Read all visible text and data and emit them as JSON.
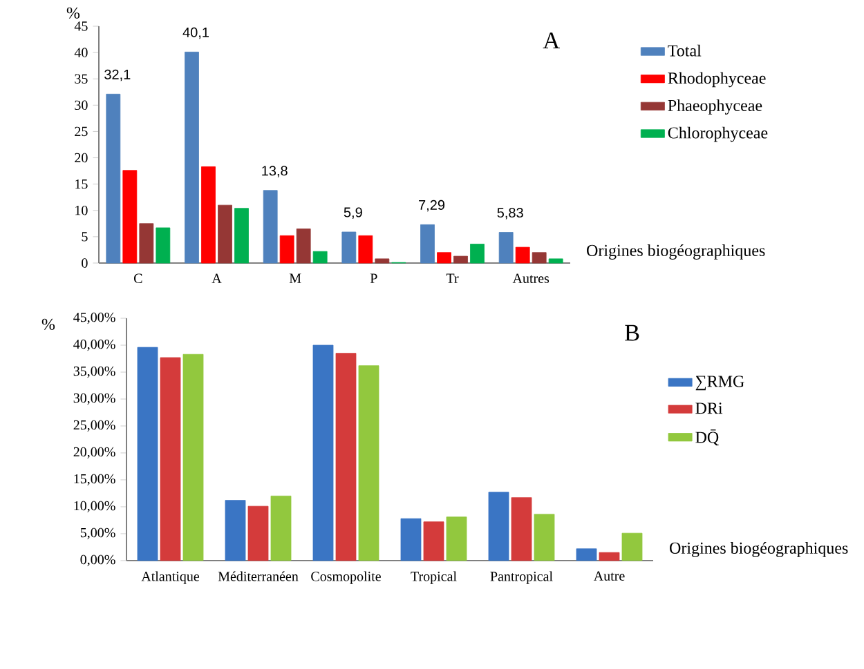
{
  "chart_data": [
    {
      "type": "bar",
      "ylabel": "%",
      "xlabel": "Origines biogéographiques",
      "categories": [
        "C",
        "A",
        "M",
        "P",
        "Tr",
        "Autres"
      ],
      "series": [
        {
          "name": "Total",
          "color": "#4f81bd",
          "values": [
            32.1,
            40.1,
            13.8,
            5.9,
            7.29,
            5.83
          ],
          "value_labels": [
            "32,1",
            "40,1",
            "13,8",
            "5,9",
            "7,29",
            "5,83"
          ]
        },
        {
          "name": "Rhodophyceae",
          "color": "#ff0000",
          "values": [
            17.6,
            18.3,
            5.2,
            5.2,
            2.0,
            3.0
          ]
        },
        {
          "name": "Phaeophyceae",
          "color": "#953735",
          "values": [
            7.5,
            11.0,
            6.5,
            0.8,
            1.3,
            2.0
          ]
        },
        {
          "name": "Chlorophyceae",
          "color": "#00b050",
          "values": [
            6.7,
            10.4,
            2.2,
            0.1,
            3.6,
            0.8
          ]
        }
      ],
      "ylim": [
        0,
        45
      ],
      "yticks": [
        0,
        5,
        10,
        15,
        20,
        25,
        30,
        35,
        40,
        45
      ],
      "legend": "right",
      "annotations": [
        "A"
      ]
    },
    {
      "type": "bar",
      "ylabel": "%",
      "xlabel": "Origines biogéographiques",
      "categories": [
        "Atlantique",
        "Méditerranéen",
        "Cosmopolite",
        "Tropical",
        "Pantropical",
        "Autre"
      ],
      "series": [
        {
          "name": "∑RMG",
          "color": "#3a75c4",
          "values": [
            39.6,
            11.2,
            40.0,
            7.8,
            12.7,
            2.2
          ]
        },
        {
          "name": "DRi",
          "color": "#d43b3b",
          "values": [
            37.7,
            10.1,
            38.5,
            7.2,
            11.7,
            1.5
          ]
        },
        {
          "name": "DQ̄",
          "color": "#92c83e",
          "values": [
            38.3,
            12.0,
            36.2,
            8.1,
            8.6,
            5.1
          ]
        }
      ],
      "ylim": [
        0,
        45
      ],
      "yticks": [
        {
          "value": 0,
          "label": "0,00%"
        },
        {
          "value": 5,
          "label": "5,00%"
        },
        {
          "value": 10,
          "label": "10,00%"
        },
        {
          "value": 15,
          "label": "15,00%"
        },
        {
          "value": 20,
          "label": "20,00%"
        },
        {
          "value": 25,
          "label": "25,00%"
        },
        {
          "value": 30,
          "label": "30,00%"
        },
        {
          "value": 35,
          "label": "35,00%"
        },
        {
          "value": 40,
          "label": "40,00%"
        },
        {
          "value": 45,
          "label": "45,00%"
        }
      ],
      "legend": "right",
      "annotations": [
        "B"
      ]
    }
  ]
}
